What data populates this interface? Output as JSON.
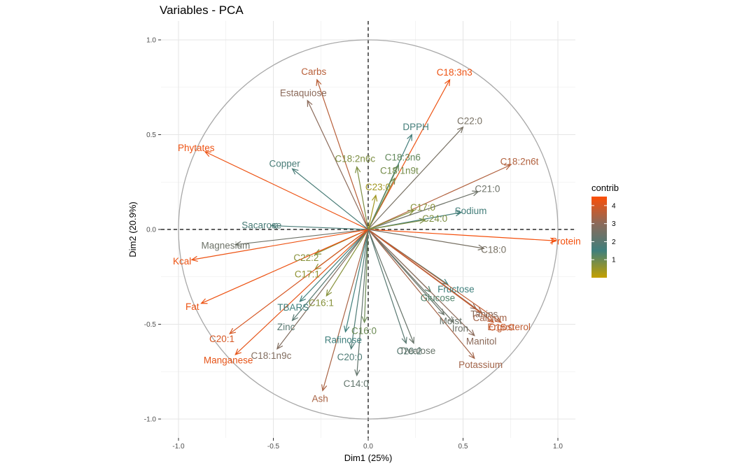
{
  "chart_data": {
    "type": "scatter",
    "subtype": "pca-variable-correlation-circle",
    "title": "Variables - PCA",
    "xlabel": "Dim1 (25%)",
    "ylabel": "Dim2 (20.9%)",
    "xlim": [
      -1.0,
      1.0
    ],
    "ylim": [
      -1.0,
      1.0
    ],
    "xticks": [
      -1.0,
      -0.5,
      0.0,
      0.5,
      1.0
    ],
    "yticks": [
      -1.0,
      -0.5,
      0.0,
      0.5,
      1.0
    ],
    "xtick_labels": [
      "-1.0",
      "-0.5",
      "0.0",
      "0.5",
      "1.0"
    ],
    "ytick_labels": [
      "-1.0",
      "-0.5",
      "0.0",
      "0.5",
      "1.0"
    ],
    "grid": true,
    "legend": {
      "title": "contrib",
      "position": "right",
      "range": [
        0,
        4.5
      ],
      "ticks": [
        1,
        2,
        3,
        4
      ],
      "tick_labels": [
        "1",
        "2",
        "3",
        "4"
      ],
      "gradient": [
        "#c4a000",
        "#3f7f7c",
        "#8b6a5a",
        "#fc4e07"
      ]
    },
    "variables": [
      {
        "name": "Carbs",
        "x": -0.27,
        "y": 0.79,
        "contrib": 3.6
      },
      {
        "name": "C18:3n3",
        "x": 0.43,
        "y": 0.79,
        "contrib": 4.3
      },
      {
        "name": "Estaquiose",
        "x": -0.32,
        "y": 0.68,
        "contrib": 3.0
      },
      {
        "name": "C22:0",
        "x": 0.5,
        "y": 0.54,
        "contrib": 2.6
      },
      {
        "name": "DPPH",
        "x": 0.23,
        "y": 0.5,
        "contrib": 1.6
      },
      {
        "name": "Phytates",
        "x": -0.86,
        "y": 0.41,
        "contrib": 4.3
      },
      {
        "name": "C18:3n6",
        "x": 0.16,
        "y": 0.34,
        "contrib": 1.1
      },
      {
        "name": "C18:2n6c",
        "x": -0.06,
        "y": 0.33,
        "contrib": 0.8
      },
      {
        "name": "C18:2n6t",
        "x": 0.75,
        "y": 0.34,
        "contrib": 3.5
      },
      {
        "name": "Copper",
        "x": -0.4,
        "y": 0.32,
        "contrib": 1.7
      },
      {
        "name": "C18:1n9t",
        "x": 0.14,
        "y": 0.27,
        "contrib": 0.9
      },
      {
        "name": "C21:0",
        "x": 0.58,
        "y": 0.2,
        "contrib": 2.4
      },
      {
        "name": "C23:0",
        "x": 0.04,
        "y": 0.18,
        "contrib": 0.4
      },
      {
        "name": "C17:0",
        "x": 0.24,
        "y": 0.1,
        "contrib": 0.7
      },
      {
        "name": "Sodium",
        "x": 0.49,
        "y": 0.09,
        "contrib": 1.6
      },
      {
        "name": "C24:0",
        "x": 0.3,
        "y": 0.05,
        "contrib": 0.8
      },
      {
        "name": "Sacarose",
        "x": -0.51,
        "y": 0.02,
        "contrib": 1.7
      },
      {
        "name": "Protein",
        "x": 0.99,
        "y": -0.06,
        "contrib": 4.4
      },
      {
        "name": "C18:0",
        "x": 0.61,
        "y": -0.1,
        "contrib": 2.6
      },
      {
        "name": "Magnesium",
        "x": -0.7,
        "y": -0.08,
        "contrib": 2.4
      },
      {
        "name": "Kcal",
        "x": -0.93,
        "y": -0.16,
        "contrib": 4.3
      },
      {
        "name": "C22:2",
        "x": -0.28,
        "y": -0.13,
        "contrib": 0.7
      },
      {
        "name": "Fructose",
        "x": 0.42,
        "y": -0.29,
        "contrib": 1.5
      },
      {
        "name": "C17:1",
        "x": -0.28,
        "y": -0.21,
        "contrib": 0.6
      },
      {
        "name": "Glucose",
        "x": 0.33,
        "y": -0.33,
        "contrib": 1.3
      },
      {
        "name": "C16:1",
        "x": -0.22,
        "y": -0.35,
        "contrib": 0.7
      },
      {
        "name": "Fat",
        "x": -0.88,
        "y": -0.39,
        "contrib": 4.3
      },
      {
        "name": "Tanins",
        "x": 0.57,
        "y": -0.42,
        "contrib": 2.9
      },
      {
        "name": "Calcium",
        "x": 0.6,
        "y": -0.44,
        "contrib": 3.3
      },
      {
        "name": "TBARS",
        "x": -0.36,
        "y": -0.38,
        "contrib": 1.5
      },
      {
        "name": "Moist",
        "x": 0.4,
        "y": -0.45,
        "contrib": 2.3
      },
      {
        "name": "Iron",
        "x": 0.45,
        "y": -0.49,
        "contrib": 2.4
      },
      {
        "name": "Ergosterol",
        "x": 0.7,
        "y": -0.49,
        "contrib": 3.7
      },
      {
        "name": "C15:0",
        "x": 0.66,
        "y": -0.49,
        "contrib": 3.8
      },
      {
        "name": "C16:0",
        "x": -0.02,
        "y": -0.49,
        "contrib": 1.0
      },
      {
        "name": "Rafinose",
        "x": -0.12,
        "y": -0.54,
        "contrib": 1.5
      },
      {
        "name": "Zinc",
        "x": -0.4,
        "y": -0.48,
        "contrib": 2.0
      },
      {
        "name": "Trealose",
        "x": 0.24,
        "y": -0.6,
        "contrib": 2.3
      },
      {
        "name": "C20:1",
        "x": -0.73,
        "y": -0.55,
        "contrib": 4.0
      },
      {
        "name": "Manitol",
        "x": 0.56,
        "y": -0.56,
        "contrib": 3.0
      },
      {
        "name": "C18:1n9c",
        "x": -0.48,
        "y": -0.63,
        "contrib": 2.8
      },
      {
        "name": "C20:0",
        "x": -0.09,
        "y": -0.63,
        "contrib": 1.8
      },
      {
        "name": "C20:2",
        "x": 0.2,
        "y": -0.6,
        "contrib": 2.0
      },
      {
        "name": "Manganese",
        "x": -0.7,
        "y": -0.66,
        "contrib": 4.2
      },
      {
        "name": "Potassium",
        "x": 0.56,
        "y": -0.68,
        "contrib": 3.3
      },
      {
        "name": "C14:0",
        "x": -0.06,
        "y": -0.77,
        "contrib": 2.2
      },
      {
        "name": "Ash",
        "x": -0.24,
        "y": -0.85,
        "contrib": 3.4
      }
    ]
  }
}
